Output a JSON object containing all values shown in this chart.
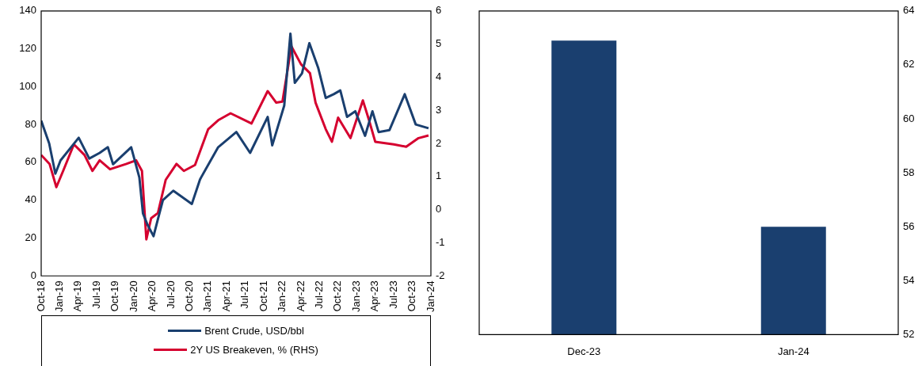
{
  "chart_data": [
    {
      "type": "line",
      "legend": "bottom",
      "xlim": [
        "2018-10",
        "2024-01"
      ],
      "xticks": [
        {
          "value": "2018-10",
          "label": "Oct-18"
        },
        {
          "value": "2019-01",
          "label": "Jan-19"
        },
        {
          "value": "2019-04",
          "label": "Apr-19"
        },
        {
          "value": "2019-07",
          "label": "Jul-19"
        },
        {
          "value": "2019-10",
          "label": "Oct-19"
        },
        {
          "value": "2020-01",
          "label": "Jan-20"
        },
        {
          "value": "2020-04",
          "label": "Apr-20"
        },
        {
          "value": "2020-07",
          "label": "Jul-20"
        },
        {
          "value": "2020-10",
          "label": "Oct-20"
        },
        {
          "value": "2021-01",
          "label": "Jan-21"
        },
        {
          "value": "2021-04",
          "label": "Apr-21"
        },
        {
          "value": "2021-07",
          "label": "Jul-21"
        },
        {
          "value": "2021-10",
          "label": "Oct-21"
        },
        {
          "value": "2022-01",
          "label": "Jan-22"
        },
        {
          "value": "2022-04",
          "label": "Apr-22"
        },
        {
          "value": "2022-07",
          "label": "Jul-22"
        },
        {
          "value": "2022-10",
          "label": "Oct-22"
        },
        {
          "value": "2023-01",
          "label": "Jan-23"
        },
        {
          "value": "2023-04",
          "label": "Apr-23"
        },
        {
          "value": "2023-07",
          "label": "Jul-23"
        },
        {
          "value": "2023-10",
          "label": "Oct-23"
        },
        {
          "value": "2024-01",
          "label": "Jan-24"
        }
      ],
      "ylim": [
        0,
        140
      ],
      "yticks": [
        0,
        20,
        40,
        60,
        80,
        100,
        120,
        140
      ],
      "y2lim": [
        -2,
        6
      ],
      "y2ticks": [
        -2,
        -1,
        0,
        1,
        2,
        3,
        4,
        5,
        6
      ],
      "series": [
        {
          "name": "Brent Crude, USD/bbl",
          "color": "#1a3f6f",
          "x": [
            "2018-10-01",
            "2018-11-10",
            "2018-12-10",
            "2019-01-05",
            "2019-04-03",
            "2019-05-25",
            "2019-07-15",
            "2019-08-25",
            "2019-09-20",
            "2019-12-18",
            "2020-01-28",
            "2020-02-15",
            "2020-03-07",
            "2020-04-06",
            "2020-04-28",
            "2020-05-22",
            "2020-07-12",
            "2020-10-12",
            "2020-11-22",
            "2021-02-20",
            "2021-05-18",
            "2021-07-25",
            "2021-10-20",
            "2021-11-12",
            "2022-01-10",
            "2022-02-10",
            "2022-03-01",
            "2022-04-06",
            "2022-05-12",
            "2022-06-25",
            "2022-08-01",
            "2022-09-10",
            "2022-10-12",
            "2022-11-15",
            "2022-12-25",
            "2023-02-12",
            "2023-03-18",
            "2023-04-18",
            "2023-06-10",
            "2023-08-25",
            "2023-10-18",
            "2023-12-20"
          ],
          "values": [
            82,
            70,
            54,
            61,
            73,
            62,
            65,
            68,
            59,
            68,
            52,
            33,
            27,
            21,
            30,
            40,
            45,
            38,
            51,
            68,
            76,
            65,
            84,
            69,
            90,
            128,
            102,
            107,
            123,
            110,
            94,
            96,
            98,
            84,
            87,
            74,
            87,
            76,
            77,
            96,
            80,
            78
          ]
        },
        {
          "name": "2Y US Breakeven, % (RHS)",
          "color": "#d5002f",
          "axis": "y2",
          "x": [
            "2018-10-01",
            "2018-11-12",
            "2018-12-15",
            "2019-01-18",
            "2019-03-10",
            "2019-05-01",
            "2019-06-10",
            "2019-07-15",
            "2019-09-05",
            "2019-11-25",
            "2020-01-12",
            "2020-02-10",
            "2020-03-01",
            "2020-03-25",
            "2020-04-28",
            "2020-06-05",
            "2020-07-28",
            "2020-09-03",
            "2020-10-28",
            "2021-01-01",
            "2021-02-20",
            "2021-04-20",
            "2021-08-01",
            "2021-10-20",
            "2021-12-01",
            "2022-01-01",
            "2022-02-15",
            "2022-04-01",
            "2022-05-15",
            "2022-06-12",
            "2022-08-01",
            "2022-09-01",
            "2022-10-01",
            "2022-12-01",
            "2023-02-01",
            "2023-03-01",
            "2023-04-01",
            "2023-07-01",
            "2023-09-01",
            "2023-11-01",
            "2023-12-20"
          ],
          "values": [
            1.65,
            1.38,
            0.68,
            1.17,
            1.97,
            1.65,
            1.17,
            1.49,
            1.22,
            1.38,
            1.49,
            1.17,
            -0.9,
            -0.26,
            -0.1,
            0.9,
            1.38,
            1.17,
            1.35,
            2.43,
            2.7,
            2.91,
            2.6,
            3.58,
            3.23,
            3.26,
            4.93,
            4.39,
            4.12,
            3.23,
            2.43,
            2.05,
            2.78,
            2.16,
            3.3,
            2.7,
            2.05,
            1.97,
            1.9,
            2.16,
            2.24
          ]
        }
      ]
    },
    {
      "type": "bar",
      "categories": [
        "Dec-23",
        "Jan-24"
      ],
      "y2lim": [
        52,
        64
      ],
      "y2ticks": [
        52,
        54,
        56,
        58,
        60,
        62,
        64
      ],
      "series": [
        {
          "color": "#1a3f6f",
          "axis": "y2",
          "values": [
            62.9,
            56
          ]
        }
      ]
    }
  ]
}
